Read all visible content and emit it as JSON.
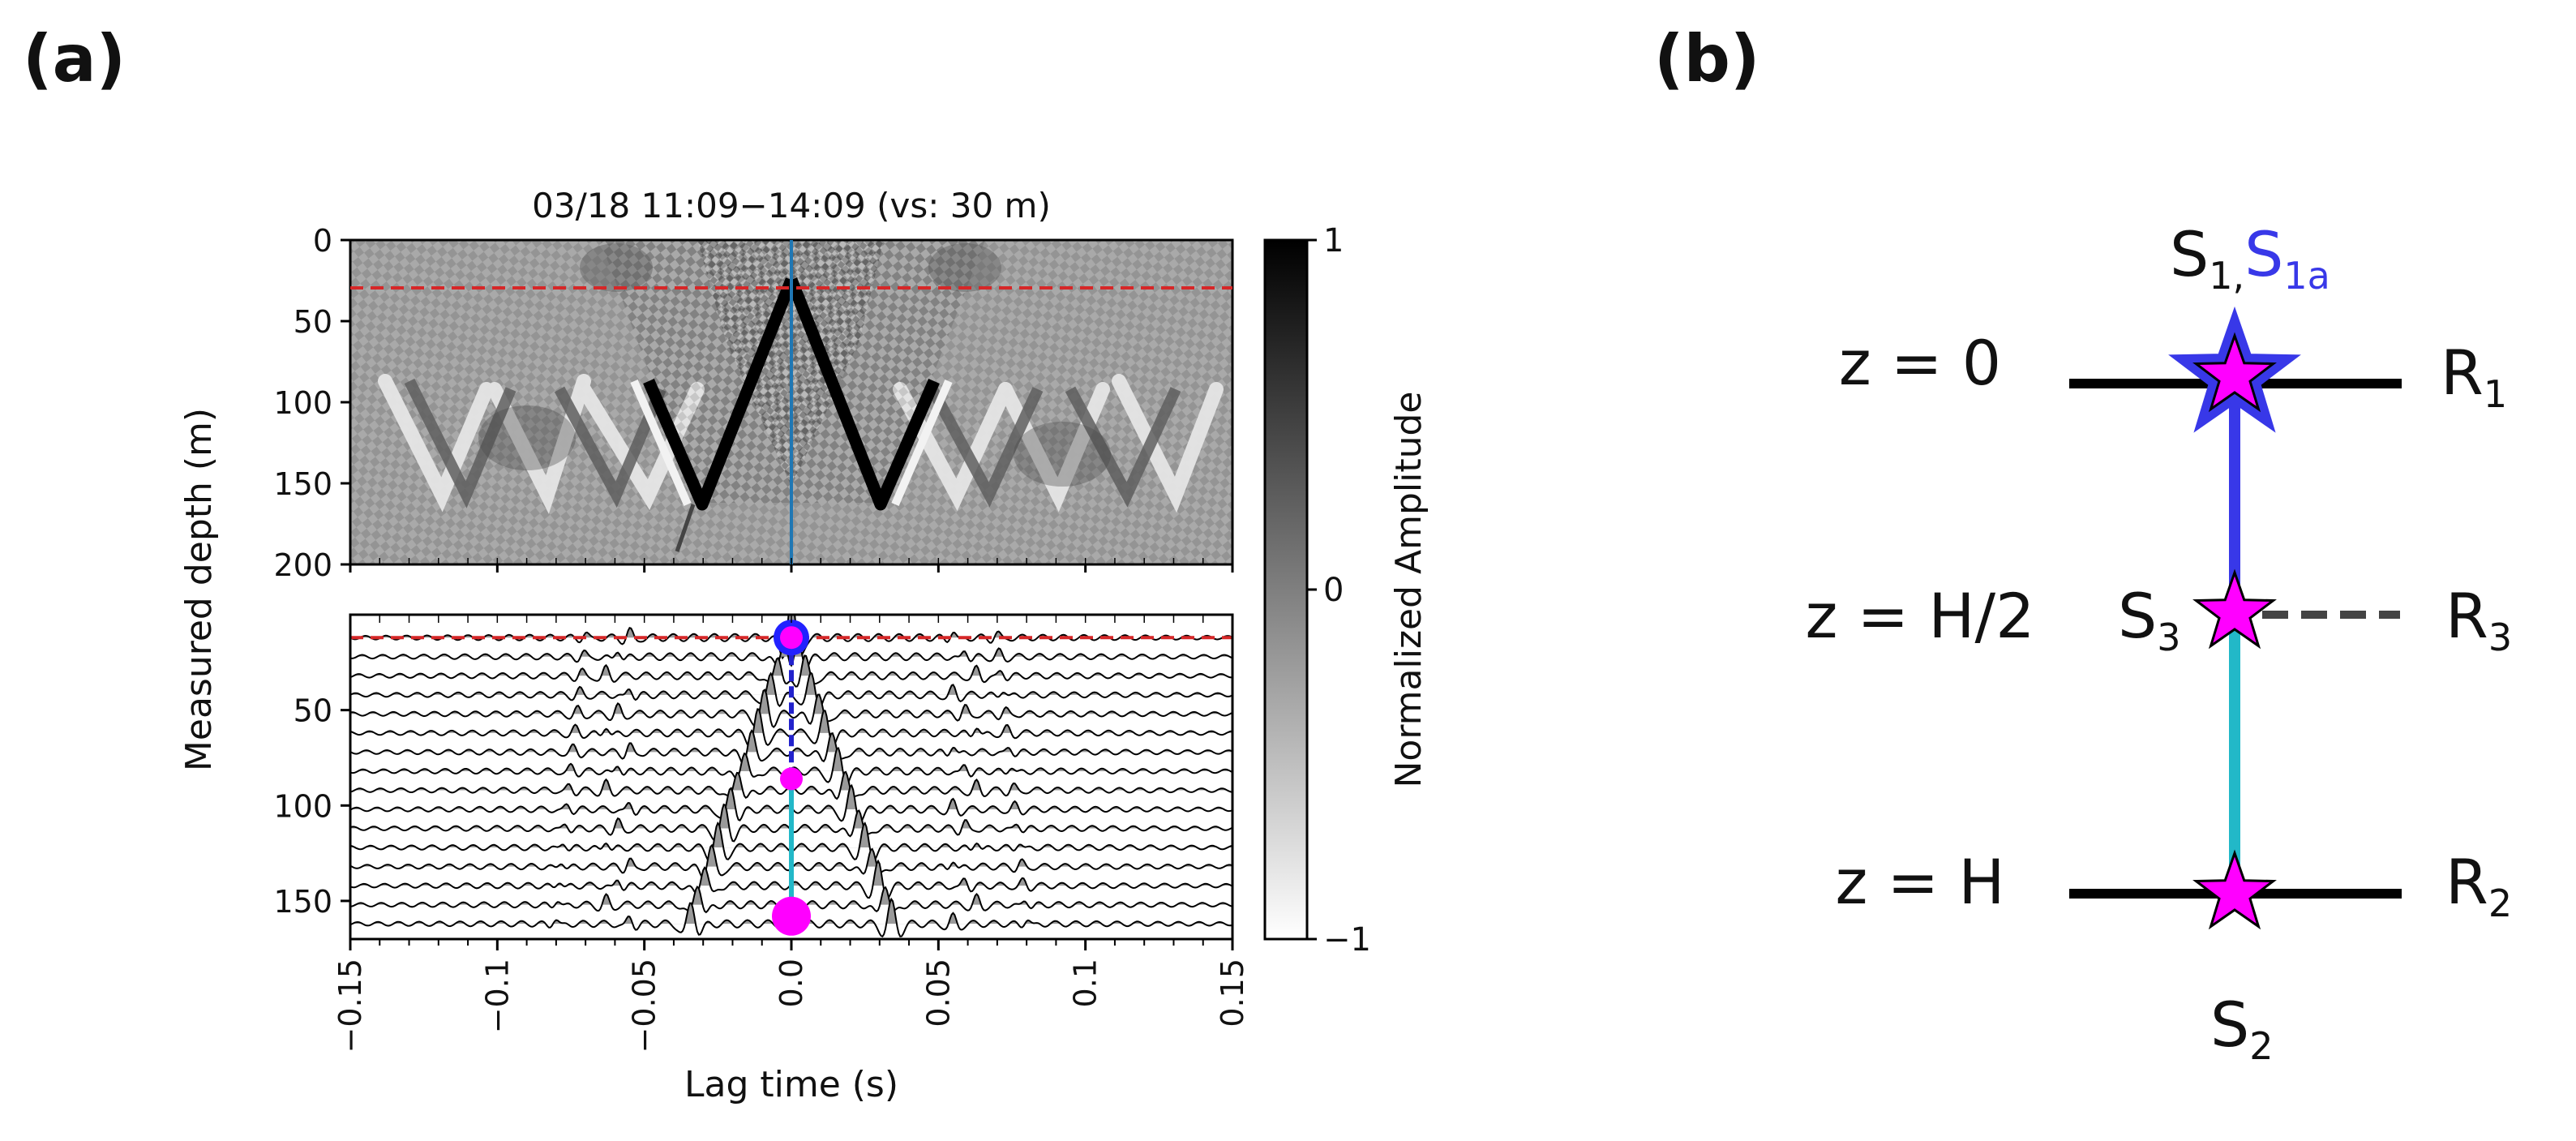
{
  "panel_a": {
    "label": "(a)",
    "title": "03/18 11:09−14:09  (vs: 30 m)",
    "ylabel": "Measured depth (m)",
    "xlabel": "Lag time (s)",
    "colorbar_label": "Normalized Amplitude",
    "colorbar_ticks": [
      "1",
      "0",
      "−1"
    ]
  },
  "panel_b": {
    "label": "(b)",
    "depth_labels": [
      "z = 0",
      "z = H/2",
      "z = H"
    ],
    "receivers": [
      {
        "base": "R",
        "sub": "1"
      },
      {
        "base": "R",
        "sub": "3"
      },
      {
        "base": "R",
        "sub": "2"
      }
    ],
    "source_top": {
      "base1": "S",
      "sub1": "1",
      "sep": ",",
      "base2": "S",
      "sub2": "1a"
    },
    "source_mid": {
      "base": "S",
      "sub": "3"
    },
    "source_bottom": {
      "base": "S",
      "sub": "2"
    },
    "colors": {
      "magenta": "#ff00ff",
      "blue": "#3838e8",
      "cyan": "#22b8c8",
      "dashed": "#444444"
    }
  },
  "chart_data": [
    {
      "type": "heatmap",
      "title": "03/18 11:09−14:09  (vs: 30 m)",
      "xlabel": "",
      "ylabel": "Measured depth (m)",
      "xlim": [
        -0.15,
        0.15
      ],
      "ylim": [
        200,
        0
      ],
      "y_ticks": [
        0,
        50,
        100,
        150,
        200
      ],
      "colorbar": {
        "label": "Normalized Amplitude",
        "range": [
          -1,
          1
        ],
        "ticks": [
          1,
          0,
          -1
        ],
        "colormap": "gray_r"
      },
      "virtual_source_depth": 30,
      "reference_line_x": 0.0
    },
    {
      "type": "line",
      "description_free": true,
      "xlabel": "Lag time (s)",
      "ylabel": "Measured depth (m)",
      "xlim": [
        -0.15,
        0.15
      ],
      "ylim": [
        170,
        0
      ],
      "x_ticks": [
        -0.15,
        -0.1,
        -0.05,
        0.0,
        0.05,
        0.1,
        0.15
      ],
      "x_tick_labels": [
        "−0.15",
        "−0.1",
        "−0.05",
        "0.0",
        "0.05",
        "0.1",
        "0.15"
      ],
      "y_ticks": [
        50,
        100,
        150
      ],
      "trace_depths": [
        12,
        22,
        32,
        42,
        52,
        62,
        72,
        82,
        92,
        102,
        112,
        122,
        132,
        142,
        152,
        162
      ],
      "virtual_source_depth": 12,
      "markers": [
        {
          "depth": 12,
          "color": "#ff00ff",
          "ring": "#2222ff"
        },
        {
          "depth": 86,
          "color": "#ff00ff"
        },
        {
          "depth": 158,
          "color": "#ff00ff"
        }
      ],
      "moveout_velocity_ms": 4400
    }
  ]
}
